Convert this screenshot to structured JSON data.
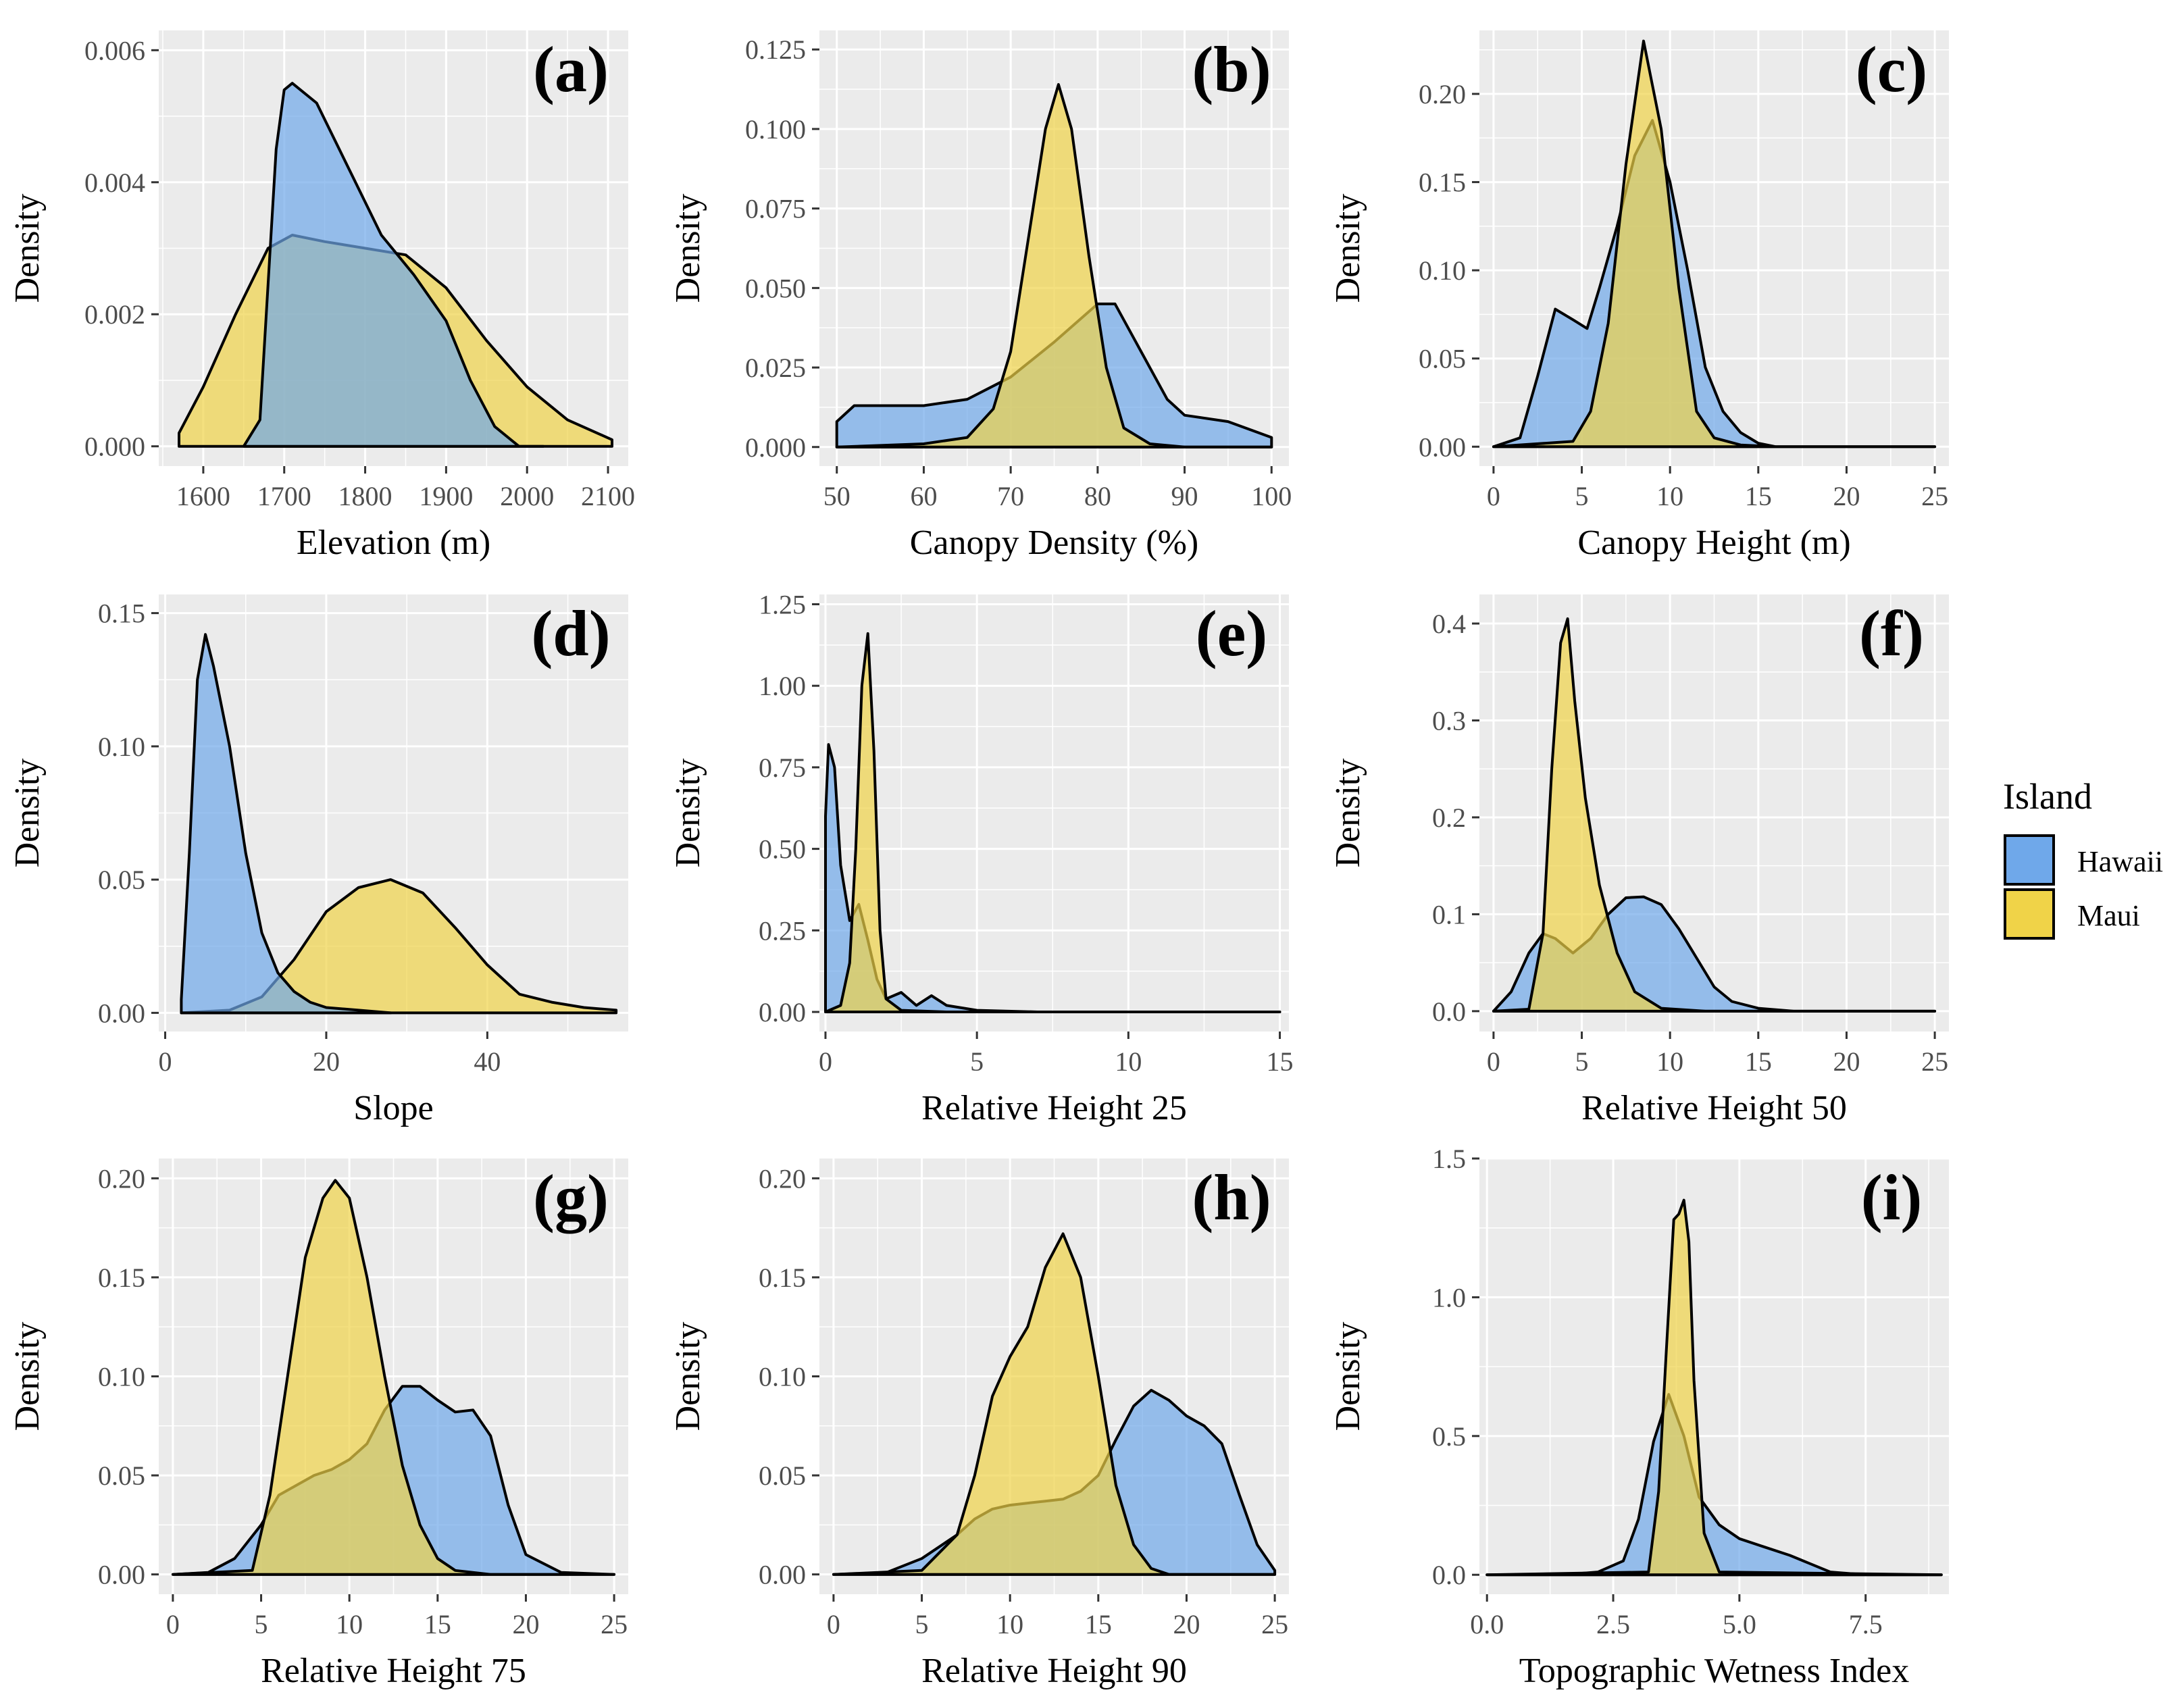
{
  "legend": {
    "title": "Island",
    "items": [
      {
        "label": "Hawaii",
        "color": "#6fa8ea"
      },
      {
        "label": "Maui",
        "color": "#f0d348"
      }
    ]
  },
  "chart_data": [
    {
      "type": "area",
      "panel": "(a)",
      "xlabel": "Elevation (m)",
      "ylabel": "Density",
      "xlim": [
        1545,
        2125
      ],
      "ylim": [
        -0.0003,
        0.0063
      ],
      "xticks": [
        1600,
        1700,
        1800,
        1900,
        2000,
        2100
      ],
      "yticks": [
        0,
        0.002,
        0.004,
        0.006
      ],
      "ytick_labels": [
        "0.000",
        "0.002",
        "0.004",
        "0.006"
      ],
      "series": [
        {
          "name": "Maui",
          "x": [
            1570,
            1600,
            1640,
            1680,
            1710,
            1750,
            1800,
            1850,
            1900,
            1950,
            2000,
            2050,
            2105
          ],
          "y": [
            0.0002,
            0.0009,
            0.002,
            0.003,
            0.0032,
            0.0031,
            0.003,
            0.0029,
            0.0024,
            0.0016,
            0.0009,
            0.0004,
            0.0001
          ]
        },
        {
          "name": "Hawaii",
          "x": [
            1650,
            1670,
            1690,
            1700,
            1710,
            1740,
            1780,
            1820,
            1860,
            1900,
            1930,
            1960,
            1990,
            2020
          ],
          "y": [
            0,
            0.0004,
            0.0045,
            0.0054,
            0.0055,
            0.0052,
            0.0042,
            0.0032,
            0.0026,
            0.0019,
            0.001,
            0.0003,
            0,
            0
          ]
        }
      ]
    },
    {
      "type": "area",
      "panel": "(b)",
      "xlabel": "Canopy Density (%)",
      "ylabel": "Density",
      "xlim": [
        48,
        102
      ],
      "ylim": [
        -0.006,
        0.131
      ],
      "xticks": [
        50,
        60,
        70,
        80,
        90,
        100
      ],
      "yticks": [
        0,
        0.025,
        0.05,
        0.075,
        0.1,
        0.125
      ],
      "ytick_labels": [
        "0.000",
        "0.025",
        "0.050",
        "0.075",
        "0.100",
        "0.125"
      ],
      "series": [
        {
          "name": "Hawaii",
          "x": [
            50,
            52,
            55,
            60,
            65,
            70,
            75,
            80,
            82,
            85,
            88,
            90,
            95,
            100
          ],
          "y": [
            0.008,
            0.013,
            0.013,
            0.013,
            0.015,
            0.022,
            0.033,
            0.045,
            0.045,
            0.03,
            0.015,
            0.01,
            0.008,
            0.003
          ]
        },
        {
          "name": "Maui",
          "x": [
            50,
            60,
            65,
            68,
            70,
            72,
            74,
            75.5,
            77,
            79,
            81,
            83,
            86,
            90,
            100
          ],
          "y": [
            0,
            0.001,
            0.003,
            0.012,
            0.03,
            0.065,
            0.1,
            0.114,
            0.1,
            0.06,
            0.025,
            0.006,
            0.001,
            0,
            0
          ]
        }
      ]
    },
    {
      "type": "area",
      "panel": "(c)",
      "xlabel": "Canopy Height (m)",
      "ylabel": "Density",
      "xlim": [
        -0.8,
        25.8
      ],
      "ylim": [
        -0.011,
        0.236
      ],
      "xticks": [
        0,
        5,
        10,
        15,
        20,
        25
      ],
      "yticks": [
        0,
        0.05,
        0.1,
        0.15,
        0.2
      ],
      "ytick_labels": [
        "0.00",
        "0.05",
        "0.10",
        "0.15",
        "0.20"
      ],
      "series": [
        {
          "name": "Hawaii",
          "x": [
            0,
            1.5,
            2.5,
            3.5,
            4.5,
            5.3,
            6,
            7,
            8,
            9,
            10,
            11,
            12,
            13,
            14,
            15,
            16,
            25
          ],
          "y": [
            0,
            0.005,
            0.04,
            0.078,
            0.072,
            0.067,
            0.09,
            0.125,
            0.165,
            0.185,
            0.15,
            0.1,
            0.045,
            0.02,
            0.008,
            0.002,
            0,
            0
          ]
        },
        {
          "name": "Maui",
          "x": [
            0,
            4.5,
            5.5,
            6.5,
            7.5,
            8.5,
            9.5,
            10.5,
            11.5,
            12.5,
            14,
            16,
            25
          ],
          "y": [
            0,
            0.003,
            0.02,
            0.07,
            0.16,
            0.23,
            0.18,
            0.09,
            0.02,
            0.005,
            0.001,
            0,
            0
          ]
        }
      ]
    },
    {
      "type": "area",
      "panel": "(d)",
      "xlabel": "Slope",
      "ylabel": "Density",
      "xlim": [
        -0.8,
        57.5
      ],
      "ylim": [
        -0.007,
        0.157
      ],
      "xticks": [
        0,
        20,
        40
      ],
      "yticks": [
        0,
        0.05,
        0.1,
        0.15
      ],
      "ytick_labels": [
        "0.00",
        "0.05",
        "0.10",
        "0.15"
      ],
      "series": [
        {
          "name": "Maui",
          "x": [
            2,
            8,
            12,
            16,
            20,
            24,
            28,
            32,
            36,
            40,
            44,
            48,
            52,
            56
          ],
          "y": [
            0,
            0.001,
            0.006,
            0.02,
            0.038,
            0.047,
            0.05,
            0.045,
            0.032,
            0.018,
            0.007,
            0.004,
            0.002,
            0.001
          ]
        },
        {
          "name": "Hawaii",
          "x": [
            2,
            3,
            4,
            5,
            6,
            8,
            10,
            12,
            14,
            16,
            18,
            20,
            24,
            28
          ],
          "y": [
            0.005,
            0.06,
            0.125,
            0.142,
            0.13,
            0.1,
            0.06,
            0.03,
            0.015,
            0.008,
            0.004,
            0.002,
            0.001,
            0
          ]
        }
      ]
    },
    {
      "type": "area",
      "panel": "(e)",
      "xlabel": "Relative Height 25",
      "ylabel": "Density",
      "xlim": [
        -0.2,
        15.3
      ],
      "ylim": [
        -0.06,
        1.28
      ],
      "xticks": [
        0,
        5,
        10,
        15
      ],
      "yticks": [
        0,
        0.25,
        0.5,
        0.75,
        1,
        1.25
      ],
      "ytick_labels": [
        "0.00",
        "0.25",
        "0.50",
        "0.75",
        "1.00",
        "1.25"
      ],
      "series": [
        {
          "name": "Hawaii",
          "x": [
            0,
            0.1,
            0.3,
            0.5,
            0.8,
            1.1,
            1.4,
            1.7,
            2,
            2.5,
            3,
            3.5,
            4,
            5,
            7,
            15
          ],
          "y": [
            0.6,
            0.82,
            0.75,
            0.45,
            0.28,
            0.33,
            0.22,
            0.1,
            0.04,
            0.06,
            0.02,
            0.05,
            0.02,
            0.005,
            0,
            0
          ]
        },
        {
          "name": "Maui",
          "x": [
            0,
            0.5,
            0.8,
            1.0,
            1.2,
            1.4,
            1.6,
            1.8,
            2.0,
            2.5,
            4,
            15
          ],
          "y": [
            0,
            0.02,
            0.15,
            0.5,
            1.0,
            1.16,
            0.8,
            0.25,
            0.04,
            0.005,
            0,
            0
          ]
        }
      ]
    },
    {
      "type": "area",
      "panel": "(f)",
      "xlabel": "Relative Height 50",
      "ylabel": "Density",
      "xlim": [
        -0.8,
        25.8
      ],
      "ylim": [
        -0.021,
        0.43
      ],
      "xticks": [
        0,
        5,
        10,
        15,
        20,
        25
      ],
      "yticks": [
        0,
        0.1,
        0.2,
        0.3,
        0.4
      ],
      "ytick_labels": [
        "0.0",
        "0.1",
        "0.2",
        "0.3",
        "0.4"
      ],
      "series": [
        {
          "name": "Hawaii",
          "x": [
            0,
            1,
            2,
            2.8,
            3.5,
            4.5,
            5.5,
            6.5,
            7.5,
            8.5,
            9.5,
            10.5,
            11.5,
            12.5,
            13.5,
            15,
            17,
            25
          ],
          "y": [
            0,
            0.02,
            0.06,
            0.08,
            0.075,
            0.06,
            0.075,
            0.1,
            0.117,
            0.118,
            0.11,
            0.085,
            0.055,
            0.025,
            0.01,
            0.003,
            0,
            0
          ]
        },
        {
          "name": "Maui",
          "x": [
            0,
            2,
            2.8,
            3.3,
            3.8,
            4.2,
            4.6,
            5.2,
            6,
            7,
            8,
            9.5,
            12,
            25
          ],
          "y": [
            0,
            0.002,
            0.08,
            0.25,
            0.38,
            0.405,
            0.32,
            0.22,
            0.13,
            0.06,
            0.02,
            0.003,
            0,
            0
          ]
        }
      ]
    },
    {
      "type": "area",
      "panel": "(g)",
      "xlabel": "Relative Height 75",
      "ylabel": "Density",
      "xlim": [
        -0.8,
        25.8
      ],
      "ylim": [
        -0.01,
        0.21
      ],
      "xticks": [
        0,
        5,
        10,
        15,
        20,
        25
      ],
      "yticks": [
        0,
        0.05,
        0.1,
        0.15,
        0.2
      ],
      "ytick_labels": [
        "0.00",
        "0.05",
        "0.10",
        "0.15",
        "0.20"
      ],
      "series": [
        {
          "name": "Hawaii",
          "x": [
            0,
            2,
            3.5,
            5,
            6,
            7,
            8,
            9,
            10,
            11,
            12,
            13,
            14,
            15,
            16,
            17,
            18,
            19,
            20,
            22,
            25
          ],
          "y": [
            0,
            0.001,
            0.008,
            0.025,
            0.04,
            0.045,
            0.05,
            0.053,
            0.058,
            0.066,
            0.083,
            0.095,
            0.095,
            0.088,
            0.082,
            0.083,
            0.07,
            0.035,
            0.01,
            0.001,
            0
          ]
        },
        {
          "name": "Maui",
          "x": [
            0,
            4.5,
            5.5,
            6.5,
            7.5,
            8.5,
            9.2,
            10,
            11,
            12,
            13,
            14,
            15,
            16,
            18,
            25
          ],
          "y": [
            0,
            0.002,
            0.04,
            0.1,
            0.16,
            0.19,
            0.199,
            0.19,
            0.15,
            0.1,
            0.055,
            0.025,
            0.008,
            0.002,
            0,
            0
          ]
        }
      ]
    },
    {
      "type": "area",
      "panel": "(h)",
      "xlabel": "Relative Height 90",
      "ylabel": "Density",
      "xlim": [
        -0.8,
        25.8
      ],
      "ylim": [
        -0.01,
        0.21
      ],
      "xticks": [
        0,
        5,
        10,
        15,
        20,
        25
      ],
      "yticks": [
        0,
        0.05,
        0.1,
        0.15,
        0.2
      ],
      "ytick_labels": [
        "0.00",
        "0.05",
        "0.10",
        "0.15",
        "0.20"
      ],
      "series": [
        {
          "name": "Hawaii",
          "x": [
            0,
            3,
            5,
            7,
            8,
            9,
            10,
            11,
            12,
            13,
            14,
            15,
            16,
            17,
            18,
            19,
            20,
            21,
            22,
            23,
            24,
            25
          ],
          "y": [
            0,
            0.001,
            0.008,
            0.02,
            0.028,
            0.033,
            0.035,
            0.036,
            0.037,
            0.038,
            0.042,
            0.05,
            0.068,
            0.085,
            0.093,
            0.088,
            0.08,
            0.075,
            0.066,
            0.04,
            0.015,
            0.002
          ]
        },
        {
          "name": "Maui",
          "x": [
            0,
            5,
            7,
            8,
            9,
            10,
            11,
            12,
            13,
            14,
            15,
            16,
            17,
            18,
            19,
            25
          ],
          "y": [
            0,
            0.002,
            0.02,
            0.05,
            0.09,
            0.11,
            0.125,
            0.155,
            0.172,
            0.15,
            0.1,
            0.045,
            0.015,
            0.003,
            0,
            0
          ]
        }
      ]
    },
    {
      "type": "area",
      "panel": "(i)",
      "xlabel": "Topographic Wetness Index",
      "ylabel": "Density",
      "xlim": [
        -0.15,
        9.15
      ],
      "ylim": [
        -0.07,
        1.5
      ],
      "xticks": [
        0,
        2.5,
        5,
        7.5
      ],
      "xtick_labels": [
        "0.0",
        "2.5",
        "5.0",
        "7.5"
      ],
      "yticks": [
        0,
        0.5,
        1,
        1.5
      ],
      "ytick_labels": [
        "0.0",
        "0.5",
        "1.0",
        "1.5"
      ],
      "series": [
        {
          "name": "Hawaii",
          "x": [
            0,
            1.5,
            2.2,
            2.7,
            3.0,
            3.3,
            3.6,
            3.9,
            4.2,
            4.6,
            5.0,
            5.5,
            6.0,
            6.4,
            6.8,
            7.5,
            9
          ],
          "y": [
            0,
            0,
            0.01,
            0.05,
            0.2,
            0.48,
            0.65,
            0.5,
            0.28,
            0.18,
            0.13,
            0.1,
            0.07,
            0.04,
            0.01,
            0,
            0
          ]
        },
        {
          "name": "Maui",
          "x": [
            0,
            3.2,
            3.4,
            3.55,
            3.7,
            3.8,
            3.9,
            4.0,
            4.1,
            4.3,
            4.6,
            9
          ],
          "y": [
            0,
            0.01,
            0.3,
            0.8,
            1.28,
            1.3,
            1.35,
            1.2,
            0.7,
            0.15,
            0.01,
            0
          ]
        }
      ]
    }
  ]
}
